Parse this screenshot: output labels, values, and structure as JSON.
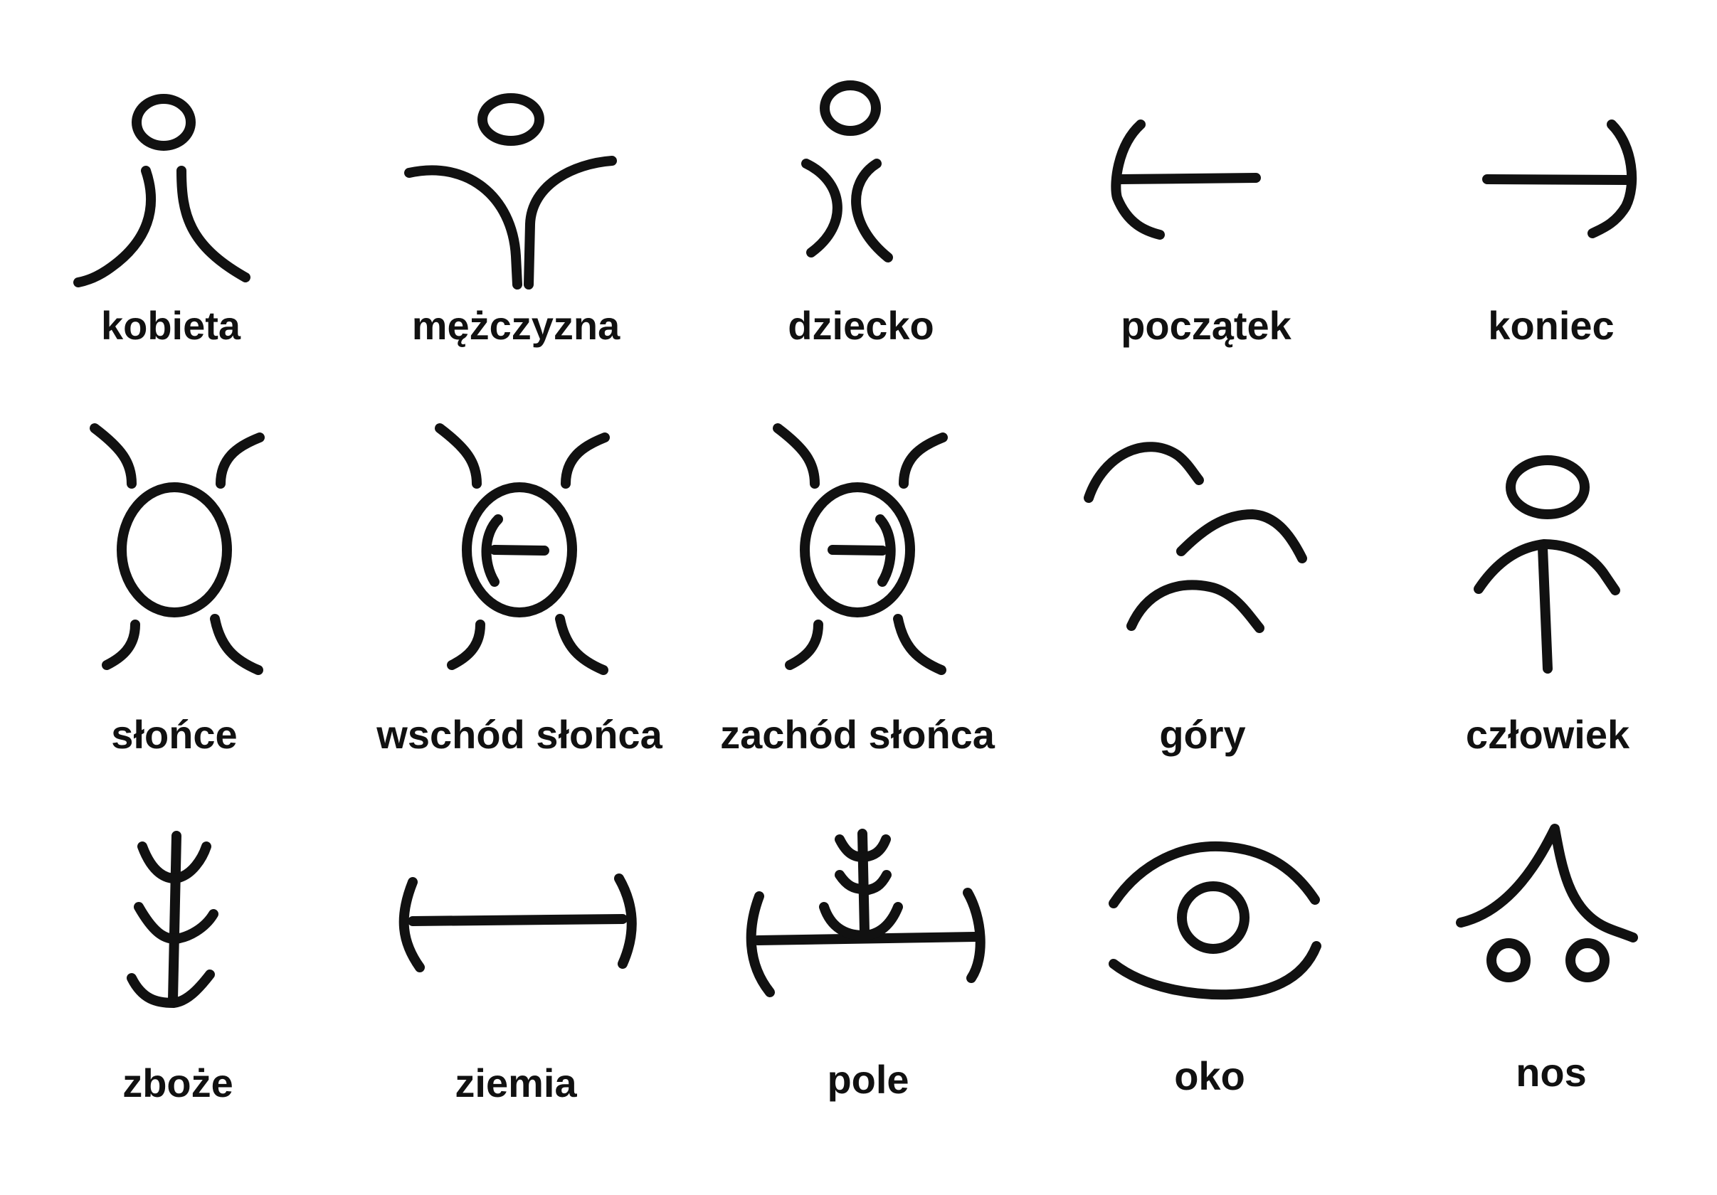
{
  "symbols": [
    {
      "id": "kobieta",
      "label": "kobieta"
    },
    {
      "id": "mezczyzna",
      "label": "mężczyzna"
    },
    {
      "id": "dziecko",
      "label": "dziecko"
    },
    {
      "id": "poczatek",
      "label": "początek"
    },
    {
      "id": "koniec",
      "label": "koniec"
    },
    {
      "id": "slonce",
      "label": "słońce"
    },
    {
      "id": "wschod-slonca",
      "label": "wschód słońca"
    },
    {
      "id": "zachod-slonca",
      "label": "zachód słońca"
    },
    {
      "id": "gory",
      "label": "góry"
    },
    {
      "id": "czlowiek",
      "label": "człowiek"
    },
    {
      "id": "zboze",
      "label": "zboże"
    },
    {
      "id": "ziemia",
      "label": "ziemia"
    },
    {
      "id": "pole",
      "label": "pole"
    },
    {
      "id": "oko",
      "label": "oko"
    },
    {
      "id": "nos",
      "label": "nos"
    }
  ]
}
